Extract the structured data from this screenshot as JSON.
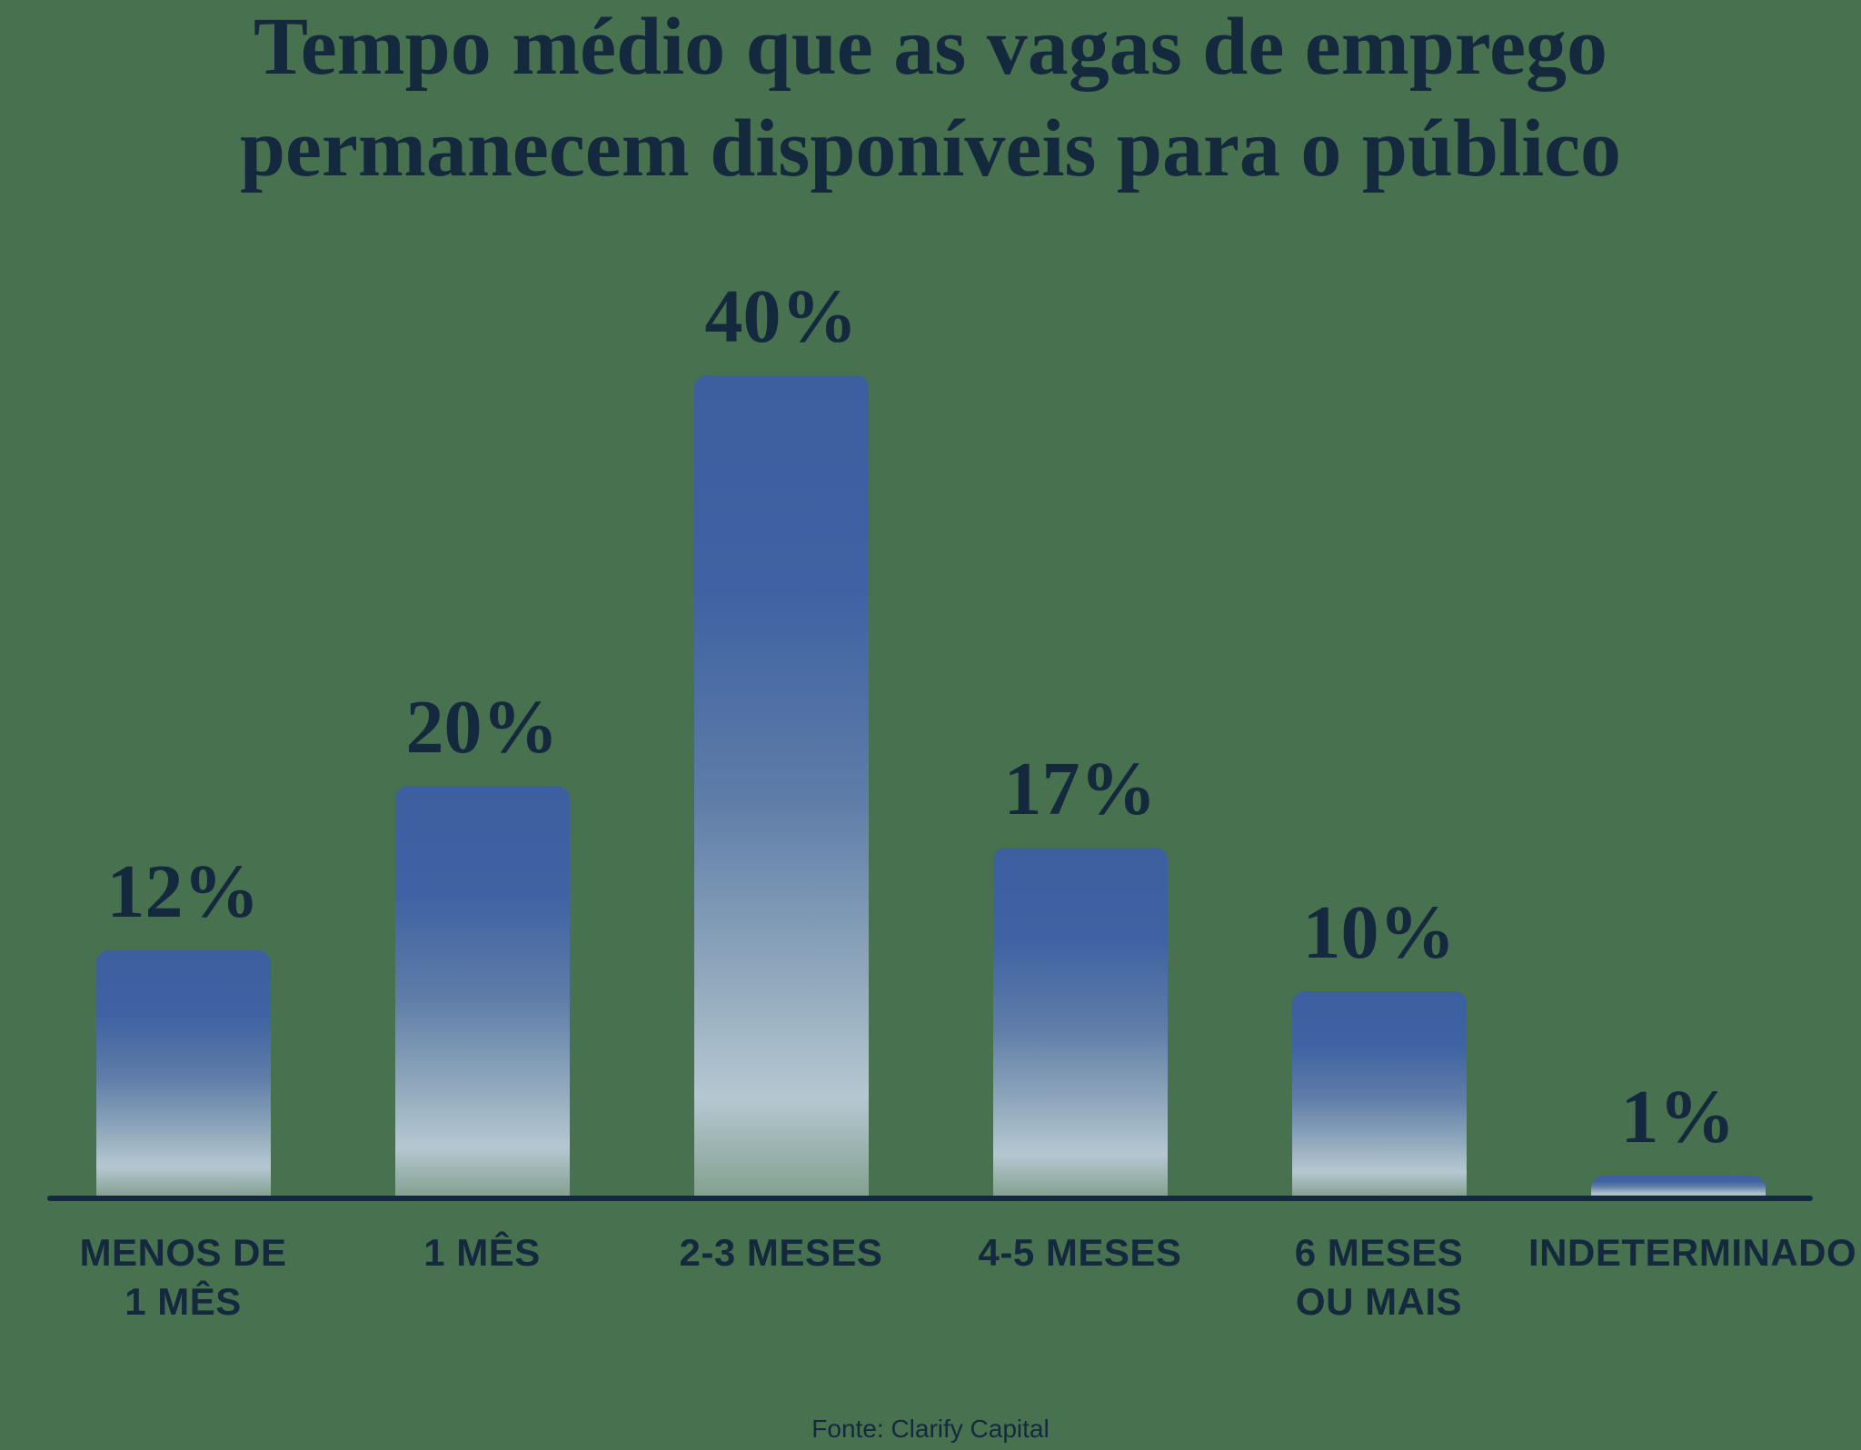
{
  "title": {
    "full": "Tempo médio que as vagas de emprego permanecem disponíveis para o público",
    "line1": "Tempo médio que as vagas de emprego",
    "line2": "permanecem disponíveis para o público"
  },
  "footer": {
    "source_label": "Fonte: Clarify Capital"
  },
  "colors": {
    "background": "#48714F",
    "text_navy": "#14293D",
    "bar_gradient_top": "#3B5F9F",
    "bar_gradient_bottom": "#C7D8DD",
    "axis": "#14293D"
  },
  "chart_data": {
    "type": "bar",
    "title": "Tempo médio que as vagas de emprego permanecem disponíveis para o público",
    "source": "Fonte: Clarify Capital",
    "unit": "%",
    "xlabel": "",
    "ylabel": "",
    "ylim": [
      0,
      40
    ],
    "grid": false,
    "legend": false,
    "value_labels_position": "above-bars",
    "categories": [
      "MENOS DE 1 MÊS",
      "1 MÊS",
      "2-3 MESES",
      "4-5 MESES",
      "6 MESES OU MAIS",
      "INDETERMINADO"
    ],
    "values": [
      12,
      20,
      40,
      17,
      10,
      1
    ],
    "items": [
      {
        "label_lines": [
          "MENOS DE",
          "1 MÊS"
        ],
        "value": 12,
        "value_label": "12%"
      },
      {
        "label_lines": [
          "1 MÊS"
        ],
        "value": 20,
        "value_label": "20%"
      },
      {
        "label_lines": [
          "2-3 MESES"
        ],
        "value": 40,
        "value_label": "40%"
      },
      {
        "label_lines": [
          "4-5 MESES"
        ],
        "value": 17,
        "value_label": "17%"
      },
      {
        "label_lines": [
          "6 MESES",
          "OU MAIS"
        ],
        "value": 10,
        "value_label": "10%"
      },
      {
        "label_lines": [
          "INDETERMINADO"
        ],
        "value": 1,
        "value_label": "1%"
      }
    ]
  }
}
